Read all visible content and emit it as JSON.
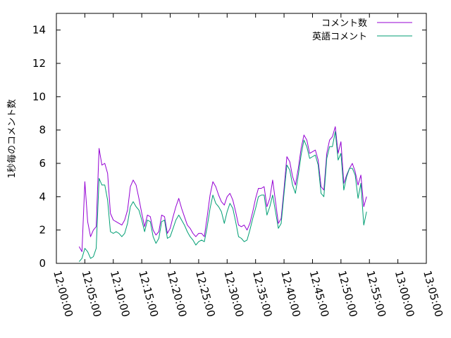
{
  "chart_data": {
    "type": "line",
    "ylabel": "1秒毎のコメント数",
    "ylim": [
      0,
      15
    ],
    "yticks": [
      0,
      2,
      4,
      6,
      8,
      10,
      12,
      14
    ],
    "xlim": [
      "12:00:00",
      "13:05:00"
    ],
    "xticks": [
      "12:00:00",
      "12:05:00",
      "12:10:00",
      "12:15:00",
      "12:20:00",
      "12:25:00",
      "12:30:00",
      "12:35:00",
      "12:40:00",
      "12:45:00",
      "12:50:00",
      "12:55:00",
      "13:00:00",
      "13:05:00"
    ],
    "legend_position": "top-right",
    "colors": {
      "series1": "#9400d3",
      "series2": "#009e73"
    },
    "series": [
      {
        "name": "コメント数",
        "points": [
          [
            "12:04:00",
            1.0
          ],
          [
            "12:04:30",
            0.7
          ],
          [
            "12:05:00",
            4.9
          ],
          [
            "12:05:30",
            2.5
          ],
          [
            "12:06:00",
            1.6
          ],
          [
            "12:06:30",
            2.0
          ],
          [
            "12:07:00",
            2.2
          ],
          [
            "12:07:30",
            6.9
          ],
          [
            "12:08:00",
            5.9
          ],
          [
            "12:08:30",
            6.0
          ],
          [
            "12:09:00",
            5.4
          ],
          [
            "12:09:30",
            3.0
          ],
          [
            "12:10:00",
            2.6
          ],
          [
            "12:10:30",
            2.5
          ],
          [
            "12:11:00",
            2.4
          ],
          [
            "12:11:30",
            2.3
          ],
          [
            "12:12:00",
            2.6
          ],
          [
            "12:12:30",
            3.2
          ],
          [
            "12:13:00",
            4.6
          ],
          [
            "12:13:30",
            5.0
          ],
          [
            "12:14:00",
            4.7
          ],
          [
            "12:14:30",
            3.9
          ],
          [
            "12:15:00",
            3.0
          ],
          [
            "12:15:30",
            2.2
          ],
          [
            "12:16:00",
            2.9
          ],
          [
            "12:16:30",
            2.8
          ],
          [
            "12:17:00",
            2.0
          ],
          [
            "12:17:30",
            1.7
          ],
          [
            "12:18:00",
            1.9
          ],
          [
            "12:18:30",
            2.9
          ],
          [
            "12:19:00",
            2.8
          ],
          [
            "12:19:30",
            1.8
          ],
          [
            "12:20:00",
            2.1
          ],
          [
            "12:20:30",
            2.8
          ],
          [
            "12:21:00",
            3.4
          ],
          [
            "12:21:30",
            3.9
          ],
          [
            "12:22:00",
            3.3
          ],
          [
            "12:22:30",
            2.8
          ],
          [
            "12:23:00",
            2.3
          ],
          [
            "12:23:30",
            2.1
          ],
          [
            "12:24:00",
            1.8
          ],
          [
            "12:24:30",
            1.6
          ],
          [
            "12:25:00",
            1.8
          ],
          [
            "12:25:30",
            1.8
          ],
          [
            "12:26:00",
            1.6
          ],
          [
            "12:26:30",
            2.8
          ],
          [
            "12:27:00",
            4.1
          ],
          [
            "12:27:30",
            4.9
          ],
          [
            "12:28:00",
            4.6
          ],
          [
            "12:28:30",
            4.1
          ],
          [
            "12:29:00",
            3.7
          ],
          [
            "12:29:30",
            3.5
          ],
          [
            "12:30:00",
            4.0
          ],
          [
            "12:30:30",
            4.2
          ],
          [
            "12:31:00",
            3.8
          ],
          [
            "12:31:30",
            3.1
          ],
          [
            "12:32:00",
            2.3
          ],
          [
            "12:32:30",
            2.2
          ],
          [
            "12:33:00",
            2.3
          ],
          [
            "12:33:30",
            2.0
          ],
          [
            "12:34:00",
            2.4
          ],
          [
            "12:34:30",
            3.1
          ],
          [
            "12:35:00",
            3.9
          ],
          [
            "12:35:30",
            4.5
          ],
          [
            "12:36:00",
            4.5
          ],
          [
            "12:36:30",
            4.6
          ],
          [
            "12:37:00",
            3.4
          ],
          [
            "12:37:30",
            3.9
          ],
          [
            "12:38:00",
            5.0
          ],
          [
            "12:38:30",
            3.7
          ],
          [
            "12:39:00",
            2.4
          ],
          [
            "12:39:30",
            2.7
          ],
          [
            "12:40:00",
            4.5
          ],
          [
            "12:40:30",
            6.4
          ],
          [
            "12:41:00",
            6.1
          ],
          [
            "12:41:30",
            5.2
          ],
          [
            "12:42:00",
            4.7
          ],
          [
            "12:42:30",
            5.7
          ],
          [
            "12:43:00",
            6.9
          ],
          [
            "12:43:30",
            7.7
          ],
          [
            "12:44:00",
            7.4
          ],
          [
            "12:44:30",
            6.6
          ],
          [
            "12:45:00",
            6.7
          ],
          [
            "12:45:30",
            6.8
          ],
          [
            "12:46:00",
            6.2
          ],
          [
            "12:46:30",
            4.6
          ],
          [
            "12:47:00",
            4.4
          ],
          [
            "12:47:30",
            6.6
          ],
          [
            "12:48:00",
            7.4
          ],
          [
            "12:48:30",
            7.6
          ],
          [
            "12:49:00",
            8.2
          ],
          [
            "12:49:30",
            6.6
          ],
          [
            "12:50:00",
            7.3
          ],
          [
            "12:50:30",
            4.8
          ],
          [
            "12:51:00",
            5.3
          ],
          [
            "12:51:30",
            5.7
          ],
          [
            "12:52:00",
            6.0
          ],
          [
            "12:52:30",
            5.5
          ],
          [
            "12:53:00",
            4.7
          ],
          [
            "12:53:30",
            5.3
          ],
          [
            "12:54:00",
            3.4
          ],
          [
            "12:54:30",
            4.0
          ]
        ]
      },
      {
        "name": "英語コメント",
        "points": [
          [
            "12:04:00",
            0.1
          ],
          [
            "12:04:30",
            0.3
          ],
          [
            "12:05:00",
            0.9
          ],
          [
            "12:05:30",
            0.7
          ],
          [
            "12:06:00",
            0.3
          ],
          [
            "12:06:30",
            0.4
          ],
          [
            "12:07:00",
            0.9
          ],
          [
            "12:07:30",
            5.1
          ],
          [
            "12:08:00",
            4.7
          ],
          [
            "12:08:30",
            4.7
          ],
          [
            "12:09:00",
            3.8
          ],
          [
            "12:09:30",
            1.9
          ],
          [
            "12:10:00",
            1.8
          ],
          [
            "12:10:30",
            1.9
          ],
          [
            "12:11:00",
            1.8
          ],
          [
            "12:11:30",
            1.6
          ],
          [
            "12:12:00",
            1.8
          ],
          [
            "12:12:30",
            2.4
          ],
          [
            "12:13:00",
            3.4
          ],
          [
            "12:13:30",
            3.7
          ],
          [
            "12:14:00",
            3.4
          ],
          [
            "12:14:30",
            3.2
          ],
          [
            "12:15:00",
            2.6
          ],
          [
            "12:15:30",
            1.9
          ],
          [
            "12:16:00",
            2.6
          ],
          [
            "12:16:30",
            2.5
          ],
          [
            "12:17:00",
            1.6
          ],
          [
            "12:17:30",
            1.2
          ],
          [
            "12:18:00",
            1.5
          ],
          [
            "12:18:30",
            2.5
          ],
          [
            "12:19:00",
            2.6
          ],
          [
            "12:19:30",
            1.5
          ],
          [
            "12:20:00",
            1.6
          ],
          [
            "12:20:30",
            2.1
          ],
          [
            "12:21:00",
            2.6
          ],
          [
            "12:21:30",
            2.9
          ],
          [
            "12:22:00",
            2.6
          ],
          [
            "12:22:30",
            2.3
          ],
          [
            "12:23:00",
            1.9
          ],
          [
            "12:23:30",
            1.6
          ],
          [
            "12:24:00",
            1.4
          ],
          [
            "12:24:30",
            1.1
          ],
          [
            "12:25:00",
            1.3
          ],
          [
            "12:25:30",
            1.4
          ],
          [
            "12:26:00",
            1.3
          ],
          [
            "12:26:30",
            2.2
          ],
          [
            "12:27:00",
            3.3
          ],
          [
            "12:27:30",
            4.1
          ],
          [
            "12:28:00",
            3.6
          ],
          [
            "12:28:30",
            3.4
          ],
          [
            "12:29:00",
            3.1
          ],
          [
            "12:29:30",
            2.4
          ],
          [
            "12:30:00",
            3.1
          ],
          [
            "12:30:30",
            3.6
          ],
          [
            "12:31:00",
            3.3
          ],
          [
            "12:31:30",
            2.5
          ],
          [
            "12:32:00",
            1.6
          ],
          [
            "12:32:30",
            1.5
          ],
          [
            "12:33:00",
            1.3
          ],
          [
            "12:33:30",
            1.4
          ],
          [
            "12:34:00",
            2.0
          ],
          [
            "12:34:30",
            2.7
          ],
          [
            "12:35:00",
            3.3
          ],
          [
            "12:35:30",
            4.0
          ],
          [
            "12:36:00",
            4.1
          ],
          [
            "12:36:30",
            4.1
          ],
          [
            "12:37:00",
            2.9
          ],
          [
            "12:37:30",
            3.4
          ],
          [
            "12:38:00",
            4.1
          ],
          [
            "12:38:30",
            3.1
          ],
          [
            "12:39:00",
            2.1
          ],
          [
            "12:39:30",
            2.4
          ],
          [
            "12:40:00",
            4.2
          ],
          [
            "12:40:30",
            5.9
          ],
          [
            "12:41:00",
            5.6
          ],
          [
            "12:41:30",
            4.7
          ],
          [
            "12:42:00",
            4.2
          ],
          [
            "12:42:30",
            5.3
          ],
          [
            "12:43:00",
            6.5
          ],
          [
            "12:43:30",
            7.4
          ],
          [
            "12:44:00",
            7.0
          ],
          [
            "12:44:30",
            6.3
          ],
          [
            "12:45:00",
            6.4
          ],
          [
            "12:45:30",
            6.5
          ],
          [
            "12:46:00",
            5.9
          ],
          [
            "12:46:30",
            4.2
          ],
          [
            "12:47:00",
            4.0
          ],
          [
            "12:47:30",
            6.3
          ],
          [
            "12:48:00",
            7.0
          ],
          [
            "12:48:30",
            7.0
          ],
          [
            "12:49:00",
            7.9
          ],
          [
            "12:49:30",
            6.2
          ],
          [
            "12:50:00",
            6.6
          ],
          [
            "12:50:30",
            4.4
          ],
          [
            "12:51:00",
            5.2
          ],
          [
            "12:51:30",
            5.7
          ],
          [
            "12:52:00",
            5.7
          ],
          [
            "12:52:30",
            5.3
          ],
          [
            "12:53:00",
            3.9
          ],
          [
            "12:53:30",
            4.8
          ],
          [
            "12:54:00",
            2.3
          ],
          [
            "12:54:30",
            3.1
          ]
        ]
      }
    ]
  }
}
